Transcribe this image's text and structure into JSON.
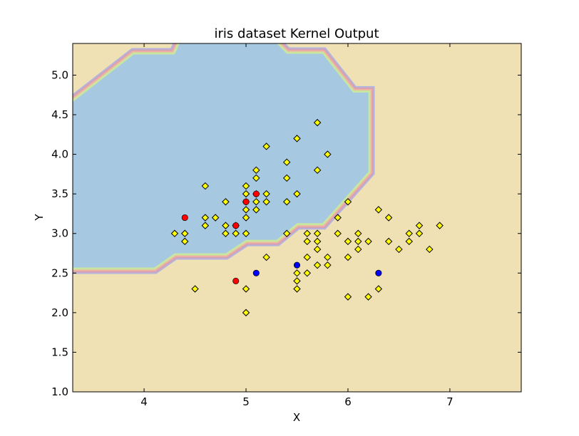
{
  "chart_data": {
    "type": "scatter",
    "title": "iris dataset Kernel Output",
    "xlabel": "X",
    "ylabel": "Y",
    "xlim": [
      3.3,
      7.7
    ],
    "ylim": [
      1.0,
      5.4
    ],
    "xticks": [
      "4",
      "5",
      "6",
      "7"
    ],
    "yticks": [
      "1.0",
      "1.5",
      "2.0",
      "2.5",
      "3.0",
      "3.5",
      "4.0",
      "4.5",
      "5.0"
    ],
    "grid": false,
    "background_color": "#f0e1b5",
    "region_color": "#a6c8e0",
    "boundary_colors": [
      "#b4b4dc",
      "#d7a0b4",
      "#f0b4a0",
      "#c8e6a0"
    ],
    "decision_region": [
      [
        3.3,
        2.57
      ],
      [
        4.1,
        2.57
      ],
      [
        4.3,
        2.75
      ],
      [
        4.8,
        2.75
      ],
      [
        5.0,
        2.92
      ],
      [
        5.3,
        2.92
      ],
      [
        5.5,
        3.13
      ],
      [
        5.75,
        3.13
      ],
      [
        6.2,
        3.78
      ],
      [
        6.2,
        4.78
      ],
      [
        6.05,
        4.78
      ],
      [
        5.75,
        5.27
      ],
      [
        5.4,
        5.27
      ],
      [
        5.3,
        5.4
      ],
      [
        4.35,
        5.4
      ],
      [
        4.3,
        5.26
      ],
      [
        3.9,
        5.26
      ],
      [
        3.3,
        4.66
      ]
    ],
    "series": [
      {
        "marker": "diamond",
        "color": "#ffff00",
        "points": [
          [
            4.3,
            3.0
          ],
          [
            4.4,
            3.0
          ],
          [
            4.4,
            2.9
          ],
          [
            4.5,
            2.3
          ],
          [
            4.6,
            3.6
          ],
          [
            4.6,
            3.2
          ],
          [
            4.6,
            3.1
          ],
          [
            4.7,
            3.2
          ],
          [
            4.8,
            3.4
          ],
          [
            4.8,
            3.1
          ],
          [
            4.8,
            3.0
          ],
          [
            4.9,
            3.0
          ],
          [
            4.9,
            3.1
          ],
          [
            5.0,
            3.6
          ],
          [
            5.0,
            3.5
          ],
          [
            5.0,
            3.4
          ],
          [
            5.0,
            3.3
          ],
          [
            5.0,
            3.2
          ],
          [
            5.0,
            3.0
          ],
          [
            5.0,
            2.3
          ],
          [
            5.0,
            2.0
          ],
          [
            5.1,
            3.8
          ],
          [
            5.1,
            3.7
          ],
          [
            5.1,
            3.5
          ],
          [
            5.1,
            3.4
          ],
          [
            5.1,
            3.3
          ],
          [
            5.2,
            4.1
          ],
          [
            5.2,
            3.5
          ],
          [
            5.2,
            3.4
          ],
          [
            5.2,
            2.7
          ],
          [
            5.4,
            3.9
          ],
          [
            5.4,
            3.7
          ],
          [
            5.4,
            3.4
          ],
          [
            5.4,
            3.0
          ],
          [
            5.5,
            4.2
          ],
          [
            5.5,
            3.5
          ],
          [
            5.5,
            2.5
          ],
          [
            5.5,
            2.4
          ],
          [
            5.5,
            2.3
          ],
          [
            5.6,
            3.0
          ],
          [
            5.6,
            2.9
          ],
          [
            5.6,
            2.7
          ],
          [
            5.6,
            2.5
          ],
          [
            5.7,
            4.4
          ],
          [
            5.7,
            3.8
          ],
          [
            5.7,
            3.0
          ],
          [
            5.7,
            2.9
          ],
          [
            5.7,
            2.8
          ],
          [
            5.7,
            2.6
          ],
          [
            5.8,
            4.0
          ],
          [
            5.8,
            2.7
          ],
          [
            5.8,
            2.6
          ],
          [
            5.9,
            3.2
          ],
          [
            5.9,
            3.0
          ],
          [
            6.0,
            3.4
          ],
          [
            6.0,
            2.9
          ],
          [
            6.0,
            2.7
          ],
          [
            6.0,
            2.2
          ],
          [
            6.1,
            3.0
          ],
          [
            6.1,
            2.9
          ],
          [
            6.1,
            2.8
          ],
          [
            6.2,
            2.9
          ],
          [
            6.2,
            2.2
          ],
          [
            6.3,
            3.3
          ],
          [
            6.3,
            2.3
          ],
          [
            6.4,
            3.2
          ],
          [
            6.4,
            2.9
          ],
          [
            6.5,
            2.8
          ],
          [
            6.6,
            3.0
          ],
          [
            6.6,
            2.9
          ],
          [
            6.7,
            3.1
          ],
          [
            6.7,
            3.0
          ],
          [
            6.8,
            2.8
          ],
          [
            6.9,
            3.1
          ]
        ]
      },
      {
        "marker": "circle",
        "color": "#ff0000",
        "points": [
          [
            4.4,
            3.2
          ],
          [
            4.9,
            3.1
          ],
          [
            4.9,
            2.4
          ],
          [
            5.0,
            3.4
          ],
          [
            5.1,
            3.5
          ]
        ]
      },
      {
        "marker": "circle",
        "color": "#0000ff",
        "points": [
          [
            5.1,
            2.5
          ],
          [
            5.5,
            2.6
          ],
          [
            6.3,
            2.5
          ]
        ]
      }
    ]
  }
}
